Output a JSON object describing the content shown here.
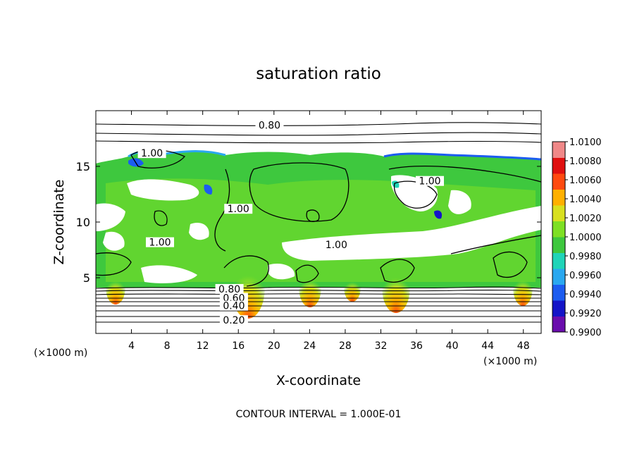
{
  "chart_data": {
    "type": "heatmap",
    "title": "saturation ratio",
    "xlabel": "X-coordinate",
    "ylabel": "Z-coordinate",
    "x_unit_left": "(×1000 m)",
    "x_unit_right": "(×1000 m)",
    "xlim": [
      0,
      50
    ],
    "ylim": [
      0,
      20
    ],
    "xticks": [
      4,
      8,
      12,
      16,
      20,
      24,
      28,
      32,
      36,
      40,
      44,
      48
    ],
    "yticks": [
      5,
      10,
      15
    ],
    "footer": "CONTOUR INTERVAL = 1.000E-01",
    "grid": false,
    "legend_placement": "right",
    "colorbar": {
      "min": 0.99,
      "max": 1.01,
      "labels": [
        "1.0100",
        "1.0080",
        "1.0060",
        "1.0040",
        "1.0020",
        "1.0000",
        "0.9980",
        "0.9960",
        "0.9940",
        "0.9920",
        "0.9900"
      ],
      "colors": [
        "#6a0dad",
        "#1414c8",
        "#1c5cf0",
        "#2aa8f0",
        "#20d4b8",
        "#3ec83e",
        "#7ee024",
        "#d8e020",
        "#ffb000",
        "#ff4a10",
        "#e01010",
        "#f08888"
      ]
    },
    "contour_labels": [
      {
        "text": "0.80",
        "x": 19.5,
        "y": 18.5
      },
      {
        "text": "1.00",
        "x": 6.3,
        "y": 16.0
      },
      {
        "text": "1.00",
        "x": 16.0,
        "y": 11.0
      },
      {
        "text": "1.00",
        "x": 27.0,
        "y": 7.8
      },
      {
        "text": "1.00",
        "x": 37.5,
        "y": 13.5
      },
      {
        "text": "1.00",
        "x": 7.2,
        "y": 8.0
      },
      {
        "text": "0.80",
        "x": 15.0,
        "y": 3.8
      },
      {
        "text": "0.60",
        "x": 15.5,
        "y": 3.0
      },
      {
        "text": "0.40",
        "x": 15.5,
        "y": 2.3
      },
      {
        "text": "0.20",
        "x": 15.5,
        "y": 1.0
      }
    ]
  }
}
